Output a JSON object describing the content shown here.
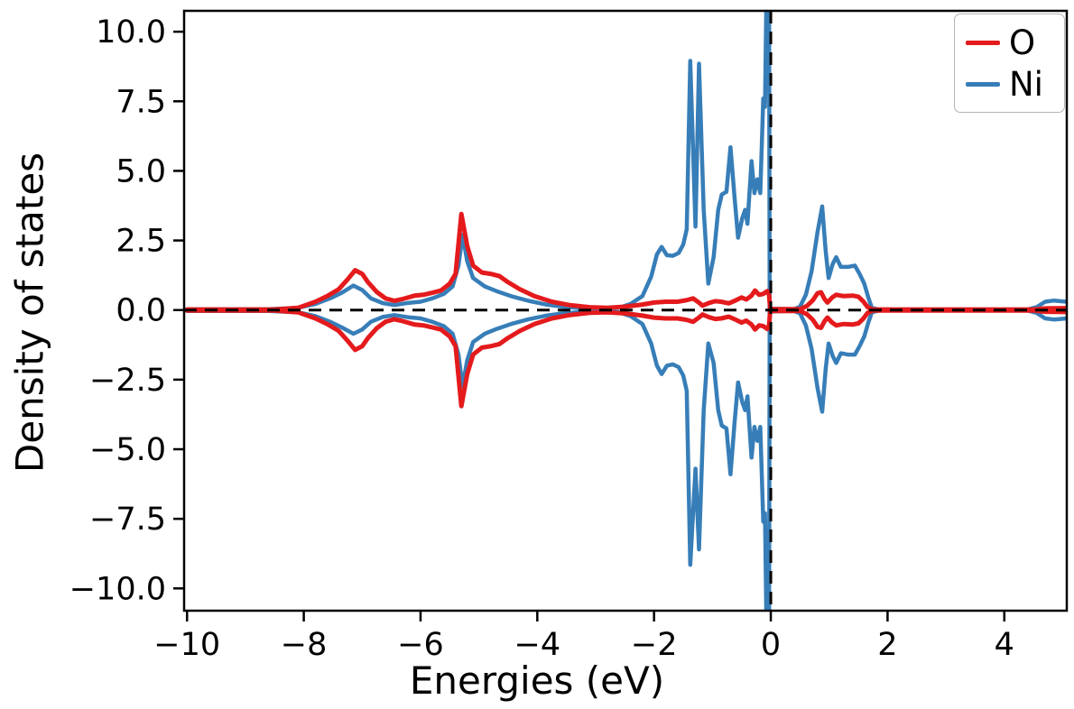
{
  "chart_data": {
    "type": "line",
    "title": "",
    "xlabel": "Energies (eV)",
    "ylabel": "Density of states",
    "xlim": [
      -10.05,
      5.07
    ],
    "ylim": [
      -10.8,
      10.75
    ],
    "xticks": [
      -10,
      -8,
      -6,
      -4,
      -2,
      0,
      2,
      4
    ],
    "yticks": [
      10.0,
      7.5,
      5.0,
      2.5,
      0.0,
      -2.5,
      -5.0,
      -7.5,
      -10.0
    ],
    "grid": false,
    "legend_position": "upper right",
    "reference_lines": [
      {
        "orientation": "horizontal",
        "value": 0,
        "style": "dashed",
        "color": "#000000"
      },
      {
        "orientation": "vertical",
        "value": 0,
        "style": "dashed",
        "color": "#000000"
      }
    ],
    "description": "Spin-polarized density of states: positive lobes are spin-up, negative lobes are spin-down; Fermi level at 0 eV marked by vertical dashed line.",
    "series": [
      {
        "name": "O",
        "color": "#e41a1c",
        "x": [
          -10.0,
          -8.5,
          -8.1,
          -7.8,
          -7.6,
          -7.4,
          -7.25,
          -7.12,
          -7.0,
          -6.9,
          -6.75,
          -6.6,
          -6.45,
          -6.3,
          -6.1,
          -5.95,
          -5.8,
          -5.65,
          -5.5,
          -5.4,
          -5.3,
          -5.2,
          -5.1,
          -4.95,
          -4.8,
          -4.65,
          -4.5,
          -4.3,
          -4.05,
          -3.75,
          -3.45,
          -3.1,
          -2.8,
          -2.5,
          -2.2,
          -2.0,
          -1.8,
          -1.6,
          -1.45,
          -1.33,
          -1.24,
          -1.17,
          -1.05,
          -0.95,
          -0.85,
          -0.72,
          -0.6,
          -0.5,
          -0.42,
          -0.33,
          -0.27,
          -0.2,
          -0.13,
          -0.06,
          -0.03,
          -0.01,
          0.5,
          0.62,
          0.72,
          0.8,
          0.86,
          0.92,
          0.97,
          1.05,
          1.12,
          1.25,
          1.4,
          1.5,
          1.58,
          1.66,
          1.75,
          4.5,
          4.7,
          5.07
        ],
        "y_spin_up": [
          0.02,
          0.02,
          0.08,
          0.3,
          0.5,
          0.75,
          1.1,
          1.43,
          1.3,
          1.0,
          0.65,
          0.42,
          0.33,
          0.4,
          0.52,
          0.55,
          0.62,
          0.7,
          0.95,
          1.3,
          3.45,
          2.3,
          1.6,
          1.35,
          1.3,
          1.22,
          1.0,
          0.75,
          0.5,
          0.3,
          0.18,
          0.1,
          0.08,
          0.12,
          0.2,
          0.27,
          0.3,
          0.3,
          0.35,
          0.42,
          0.28,
          0.16,
          0.26,
          0.32,
          0.3,
          0.24,
          0.35,
          0.45,
          0.38,
          0.52,
          0.7,
          0.55,
          0.58,
          0.68,
          0.55,
          0.03,
          0.03,
          0.15,
          0.35,
          0.6,
          0.64,
          0.4,
          0.27,
          0.45,
          0.55,
          0.5,
          0.52,
          0.48,
          0.32,
          0.1,
          0.02,
          0.02,
          0.06,
          0.07
        ],
        "y_spin_down": [
          -0.02,
          -0.02,
          -0.08,
          -0.3,
          -0.5,
          -0.75,
          -1.1,
          -1.43,
          -1.3,
          -1.0,
          -0.65,
          -0.42,
          -0.33,
          -0.4,
          -0.52,
          -0.55,
          -0.62,
          -0.7,
          -0.95,
          -1.3,
          -3.45,
          -2.3,
          -1.6,
          -1.35,
          -1.3,
          -1.22,
          -1.0,
          -0.75,
          -0.5,
          -0.3,
          -0.18,
          -0.1,
          -0.08,
          -0.12,
          -0.2,
          -0.27,
          -0.3,
          -0.3,
          -0.35,
          -0.42,
          -0.28,
          -0.16,
          -0.26,
          -0.32,
          -0.3,
          -0.24,
          -0.35,
          -0.45,
          -0.38,
          -0.52,
          -0.7,
          -0.55,
          -0.58,
          -0.68,
          -0.55,
          -0.03,
          -0.03,
          -0.15,
          -0.35,
          -0.6,
          -0.64,
          -0.4,
          -0.27,
          -0.45,
          -0.55,
          -0.5,
          -0.52,
          -0.48,
          -0.32,
          -0.1,
          -0.02,
          -0.02,
          -0.06,
          -0.07
        ]
      },
      {
        "name": "Ni",
        "color": "#377eb8",
        "x": [
          -10.0,
          -8.6,
          -8.1,
          -7.8,
          -7.55,
          -7.35,
          -7.15,
          -7.0,
          -6.85,
          -6.65,
          -6.45,
          -6.2,
          -6.0,
          -5.8,
          -5.6,
          -5.45,
          -5.35,
          -5.28,
          -5.2,
          -5.1,
          -4.9,
          -4.7,
          -4.45,
          -4.15,
          -3.85,
          -3.55,
          -3.2,
          -2.85,
          -2.6,
          -2.4,
          -2.2,
          -2.05,
          -1.95,
          -1.87,
          -1.78,
          -1.68,
          -1.58,
          -1.5,
          -1.44,
          -1.38,
          -1.29,
          -1.23,
          -1.15,
          -1.07,
          -0.98,
          -0.9,
          -0.84,
          -0.76,
          -0.69,
          -0.62,
          -0.56,
          -0.49,
          -0.44,
          -0.4,
          -0.33,
          -0.28,
          -0.23,
          -0.18,
          -0.13,
          -0.1,
          -0.07,
          -0.03,
          -0.02,
          0.4,
          0.5,
          0.6,
          0.7,
          0.8,
          0.88,
          0.94,
          0.99,
          1.06,
          1.12,
          1.2,
          1.32,
          1.44,
          1.52,
          1.6,
          1.67,
          1.73,
          1.85,
          4.4,
          4.55,
          4.7,
          4.85,
          5.07
        ],
        "y_spin_up": [
          0.03,
          0.03,
          0.08,
          0.22,
          0.42,
          0.62,
          0.88,
          0.72,
          0.42,
          0.25,
          0.18,
          0.26,
          0.3,
          0.42,
          0.58,
          0.85,
          1.6,
          2.7,
          1.75,
          1.15,
          0.85,
          0.68,
          0.5,
          0.33,
          0.2,
          0.12,
          0.06,
          0.04,
          0.08,
          0.22,
          0.5,
          1.2,
          2.0,
          2.27,
          1.97,
          1.95,
          2.05,
          2.35,
          2.9,
          8.95,
          3.0,
          8.85,
          3.6,
          0.95,
          1.9,
          3.6,
          4.15,
          4.25,
          5.85,
          4.0,
          2.6,
          3.3,
          3.6,
          3.1,
          5.35,
          4.2,
          4.7,
          4.2,
          7.6,
          7.3,
          12.0,
          12.0,
          0.05,
          0.03,
          0.12,
          0.55,
          1.4,
          2.8,
          3.72,
          2.1,
          1.15,
          1.65,
          1.9,
          1.55,
          1.55,
          1.6,
          1.3,
          0.95,
          0.45,
          0.08,
          0.02,
          0.02,
          0.1,
          0.3,
          0.34,
          0.3
        ],
        "y_spin_down": [
          -0.03,
          -0.03,
          -0.08,
          -0.22,
          -0.42,
          -0.62,
          -0.85,
          -0.7,
          -0.42,
          -0.25,
          -0.18,
          -0.26,
          -0.3,
          -0.42,
          -0.58,
          -0.85,
          -1.6,
          -2.75,
          -1.8,
          -1.15,
          -0.85,
          -0.68,
          -0.5,
          -0.33,
          -0.2,
          -0.12,
          -0.06,
          -0.04,
          -0.08,
          -0.22,
          -0.5,
          -1.2,
          -2.0,
          -2.3,
          -2.0,
          -1.95,
          -2.05,
          -2.35,
          -2.9,
          -9.15,
          -5.7,
          -8.6,
          -3.6,
          -1.2,
          -1.9,
          -3.6,
          -4.15,
          -4.25,
          -5.9,
          -4.0,
          -2.6,
          -3.3,
          -3.6,
          -3.1,
          -5.3,
          -4.2,
          -4.7,
          -4.2,
          -7.6,
          -7.3,
          -12.0,
          -12.0,
          -0.05,
          -0.03,
          -0.12,
          -0.55,
          -1.4,
          -2.8,
          -3.65,
          -2.1,
          -1.2,
          -1.65,
          -1.9,
          -1.55,
          -1.6,
          -1.6,
          -1.3,
          -0.95,
          -0.45,
          -0.08,
          -0.02,
          -0.02,
          -0.1,
          -0.3,
          -0.34,
          -0.3
        ]
      }
    ]
  },
  "legend": {
    "entries": [
      {
        "label": "O",
        "color": "#e41a1c"
      },
      {
        "label": "Ni",
        "color": "#377eb8"
      }
    ]
  }
}
